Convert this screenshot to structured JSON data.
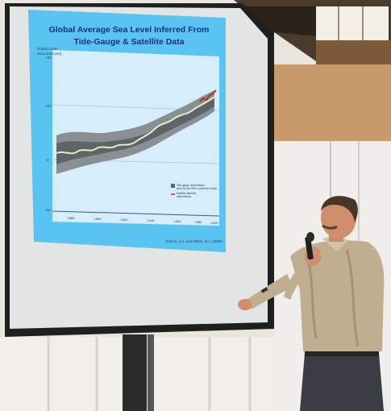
{
  "slide": {
    "title_line1": "Global Average Sea Level Inferred From",
    "title_line2": "Tide-Gauge & Satellite Data",
    "y_axis_label_1": "Global mean",
    "y_axis_label_2": "Sea Level (cm)",
    "y_ticks": [
      "+20",
      "+10",
      "0",
      "-10"
    ],
    "x_ticks": [
      "1880",
      "1900",
      "1920",
      "1940",
      "1960",
      "1980",
      "2000"
    ],
    "legend_1a": "Tide gauge observations",
    "legend_1b": "(with 66 and 95% confidence limits)",
    "legend_2a": "Satellite altimeter",
    "legend_2b": "observations",
    "citation": "Church, J.A. and White, N.J. (2006)"
  },
  "colors": {
    "slide_background": "#59c4f2",
    "plot_background": "#d6eefb",
    "band_outer": "#8a8f93",
    "band_inner": "#5e6468",
    "tide_line": "#e6edc0",
    "satellite_line": "#b23232",
    "title_text": "#1b2c8a"
  }
}
